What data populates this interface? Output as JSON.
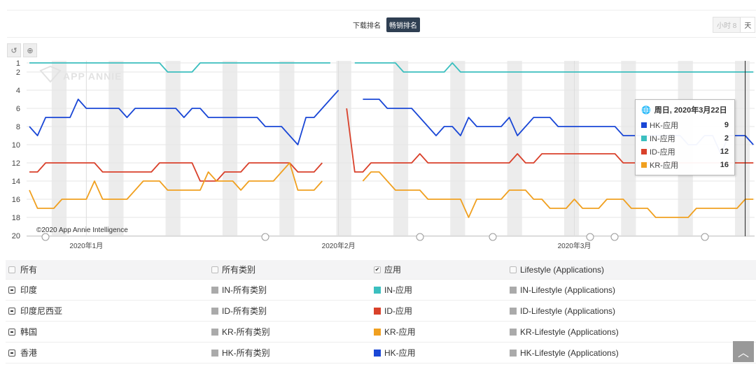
{
  "toolbar": {
    "download_rank": "下载排名",
    "grossing_rank": "畅销排名",
    "granularity": [
      "小时 8",
      "天"
    ],
    "reset_icon": "undo-icon",
    "zoom_icon": "zoom-in-icon"
  },
  "watermark": "APP ANNIE",
  "copyright": "©2020 App Annie Intelligence",
  "tooltip": {
    "title": "周日, 2020年3月22日",
    "icon": "globe-icon",
    "rows": [
      {
        "label": "HK-应用",
        "value": "9",
        "color": "#1a47d6"
      },
      {
        "label": "IN-应用",
        "value": "2",
        "color": "#3bbfbf"
      },
      {
        "label": "ID-应用",
        "value": "12",
        "color": "#d9412b"
      },
      {
        "label": "KR-应用",
        "value": "16",
        "color": "#f0a020"
      }
    ]
  },
  "chart_data": {
    "type": "line",
    "y_reversed": true,
    "ylim": [
      1,
      20
    ],
    "yticks": [
      "1",
      "2",
      "4",
      "6",
      "8",
      "10",
      "12",
      "14",
      "16",
      "18",
      "20"
    ],
    "xtick_labels": [
      {
        "date": "2020-01-01",
        "label": "2020年1月"
      },
      {
        "date": "2020-02-01",
        "label": "2020年2月"
      },
      {
        "date": "2020-03-01",
        "label": "2020年3月"
      }
    ],
    "grid": true,
    "weekend_shading": true,
    "x": [
      "2019-12-25",
      "2019-12-26",
      "2019-12-27",
      "2019-12-28",
      "2019-12-29",
      "2019-12-30",
      "2019-12-31",
      "2020-01-01",
      "2020-01-02",
      "2020-01-03",
      "2020-01-04",
      "2020-01-05",
      "2020-01-06",
      "2020-01-07",
      "2020-01-08",
      "2020-01-09",
      "2020-01-10",
      "2020-01-11",
      "2020-01-12",
      "2020-01-13",
      "2020-01-14",
      "2020-01-15",
      "2020-01-16",
      "2020-01-17",
      "2020-01-18",
      "2020-01-19",
      "2020-01-20",
      "2020-01-21",
      "2020-01-22",
      "2020-01-23",
      "2020-01-24",
      "2020-01-25",
      "2020-01-26",
      "2020-01-27",
      "2020-01-28",
      "2020-01-29",
      "2020-01-30",
      "2020-01-31",
      "2020-02-01",
      "2020-02-02",
      "2020-02-03",
      "2020-02-04",
      "2020-02-05",
      "2020-02-06",
      "2020-02-07",
      "2020-02-08",
      "2020-02-09",
      "2020-02-10",
      "2020-02-11",
      "2020-02-12",
      "2020-02-13",
      "2020-02-14",
      "2020-02-15",
      "2020-02-16",
      "2020-02-17",
      "2020-02-18",
      "2020-02-19",
      "2020-02-20",
      "2020-02-21",
      "2020-02-22",
      "2020-02-23",
      "2020-02-24",
      "2020-02-25",
      "2020-02-26",
      "2020-02-27",
      "2020-02-28",
      "2020-02-29",
      "2020-03-01",
      "2020-03-02",
      "2020-03-03",
      "2020-03-04",
      "2020-03-05",
      "2020-03-06",
      "2020-03-07",
      "2020-03-08",
      "2020-03-09",
      "2020-03-10",
      "2020-03-11",
      "2020-03-12",
      "2020-03-13",
      "2020-03-14",
      "2020-03-15",
      "2020-03-16",
      "2020-03-17",
      "2020-03-18",
      "2020-03-19",
      "2020-03-20",
      "2020-03-21",
      "2020-03-22",
      "2020-03-23"
    ],
    "highlight_date": "2020-03-22",
    "series": [
      {
        "name": "HK-应用",
        "color": "#1a47d6",
        "values": [
          8,
          9,
          7,
          7,
          7,
          7,
          5,
          6,
          6,
          6,
          6,
          6,
          7,
          6,
          6,
          6,
          6,
          6,
          6,
          7,
          6,
          6,
          7,
          7,
          7,
          7,
          7,
          7,
          7,
          8,
          8,
          8,
          9,
          10,
          7,
          7,
          6,
          5,
          4,
          null,
          null,
          5,
          5,
          5,
          6,
          6,
          6,
          6,
          7,
          8,
          9,
          8,
          8,
          9,
          7,
          8,
          8,
          8,
          8,
          7,
          9,
          8,
          7,
          7,
          7,
          8,
          8,
          8,
          8,
          8,
          8,
          8,
          8,
          9,
          9,
          9,
          9,
          9,
          9,
          9,
          9,
          10,
          10,
          9,
          9,
          11,
          9,
          9,
          9,
          10
        ]
      },
      {
        "name": "IN-应用",
        "color": "#3bbfbf",
        "values": [
          1,
          1,
          1,
          1,
          1,
          1,
          1,
          1,
          1,
          1,
          1,
          1,
          1,
          1,
          1,
          1,
          1,
          2,
          2,
          2,
          2,
          1,
          1,
          1,
          1,
          1,
          1,
          1,
          1,
          1,
          1,
          1,
          1,
          1,
          1,
          1,
          1,
          1,
          null,
          null,
          1,
          1,
          1,
          1,
          1,
          1,
          2,
          2,
          2,
          2,
          2,
          2,
          1,
          2,
          2,
          2,
          2,
          2,
          2,
          2,
          2,
          2,
          2,
          2,
          2,
          2,
          2,
          2,
          2,
          2,
          2,
          2,
          2,
          2,
          2,
          2,
          2,
          2,
          2,
          2,
          2,
          2,
          2,
          2,
          2,
          2,
          2,
          2,
          2,
          2
        ]
      },
      {
        "name": "ID-应用",
        "color": "#d9412b",
        "values": [
          13,
          13,
          12,
          12,
          12,
          12,
          12,
          12,
          12,
          13,
          13,
          13,
          13,
          13,
          13,
          13,
          12,
          12,
          12,
          12,
          12,
          14,
          14,
          14,
          13,
          13,
          13,
          12,
          12,
          12,
          12,
          12,
          12,
          13,
          13,
          13,
          12,
          null,
          null,
          6,
          13,
          13,
          12,
          12,
          12,
          12,
          12,
          12,
          11,
          12,
          12,
          12,
          12,
          12,
          12,
          12,
          12,
          12,
          12,
          12,
          11,
          12,
          12,
          11,
          11,
          11,
          11,
          11,
          11,
          11,
          11,
          11,
          11,
          12,
          12,
          12,
          12,
          12,
          12,
          12,
          12,
          12,
          12,
          12,
          12,
          12,
          12,
          12,
          12,
          12
        ]
      },
      {
        "name": "KR-应用",
        "color": "#f0a020",
        "values": [
          15,
          17,
          17,
          17,
          16,
          16,
          16,
          16,
          14,
          16,
          16,
          16,
          16,
          15,
          14,
          14,
          14,
          15,
          15,
          15,
          15,
          15,
          13,
          14,
          14,
          14,
          15,
          14,
          14,
          14,
          14,
          13,
          12,
          15,
          15,
          15,
          14,
          null,
          null,
          null,
          null,
          14,
          13,
          13,
          14,
          15,
          15,
          15,
          15,
          16,
          16,
          16,
          16,
          16,
          18,
          16,
          16,
          16,
          16,
          15,
          15,
          15,
          16,
          16,
          17,
          17,
          17,
          16,
          17,
          17,
          17,
          16,
          16,
          16,
          17,
          17,
          17,
          18,
          18,
          18,
          18,
          18,
          17,
          17,
          17,
          17,
          17,
          17,
          16,
          16
        ]
      }
    ]
  },
  "table": {
    "headers": [
      {
        "label": "所有",
        "checked": false
      },
      {
        "label": "所有类别",
        "checked": false
      },
      {
        "label": "应用",
        "checked": true
      },
      {
        "label": "Lifestyle (Applications)",
        "checked": false
      }
    ],
    "rows": [
      {
        "country": "印度",
        "all": "IN-所有类别",
        "app": "IN-应用",
        "app_color": "#3bbfbf",
        "lifestyle": "IN-Lifestyle (Applications)"
      },
      {
        "country": "印度尼西亚",
        "all": "ID-所有类别",
        "app": "ID-应用",
        "app_color": "#d9412b",
        "lifestyle": "ID-Lifestyle (Applications)"
      },
      {
        "country": "韩国",
        "all": "KR-所有类别",
        "app": "KR-应用",
        "app_color": "#f0a020",
        "lifestyle": "KR-Lifestyle (Applications)"
      },
      {
        "country": "香港",
        "all": "HK-所有类别",
        "app": "HK-应用",
        "app_color": "#1a47d6",
        "lifestyle": "HK-Lifestyle (Applications)"
      }
    ]
  }
}
